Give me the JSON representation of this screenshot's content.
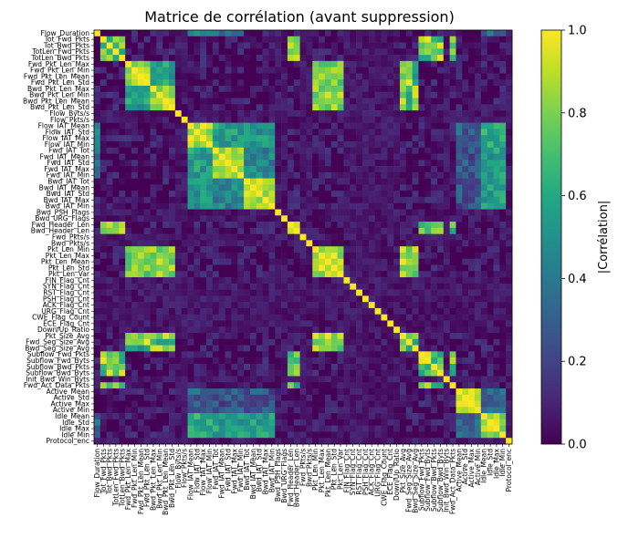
{
  "chart_data": {
    "type": "heatmap",
    "title": "Matrice de corrélation (avant suppression)",
    "colorbar_label": "|Corrélation|",
    "colormap": "viridis",
    "vmin": 0.0,
    "vmax": 1.0,
    "colorbar_ticks": [
      "0.0",
      "0.2",
      "0.4",
      "0.6",
      "0.8",
      "1.0"
    ],
    "colorbar_tick_values": [
      0.0,
      0.2,
      0.4,
      0.6,
      0.8,
      1.0
    ],
    "features": [
      "Flow_Duration",
      "Tot_Fwd_Pkts",
      "Tot_Bwd_Pkts",
      "TotLen_Fwd_Pkts",
      "TotLen_Bwd_Pkts",
      "Fwd_Pkt_Len_Max",
      "Fwd_Pkt_Len_Min",
      "Fwd_Pkt_Len_Mean",
      "Fwd_Pkt_Len_Std",
      "Bwd_Pkt_Len_Max",
      "Bwd_Pkt_Len_Min",
      "Bwd_Pkt_Len_Mean",
      "Bwd_Pkt_Len_Std",
      "Flow_Byts/s",
      "Flow_Pkts/s",
      "Flow_IAT_Mean",
      "Flow_IAT_Std",
      "Flow_IAT_Max",
      "Flow_IAT_Min",
      "Fwd_IAT_Tot",
      "Fwd_IAT_Mean",
      "Fwd_IAT_Std",
      "Fwd_IAT_Max",
      "Fwd_IAT_Min",
      "Bwd_IAT_Tot",
      "Bwd_IAT_Mean",
      "Bwd_IAT_Std",
      "Bwd_IAT_Max",
      "Bwd_IAT_Min",
      "Bwd_PSH_Flags",
      "Bwd_URG_Flags",
      "Fwd_Header_Len",
      "Bwd_Header_Len",
      "Fwd_Pkts/s",
      "Bwd_Pkts/s",
      "Pkt_Len_Min",
      "Pkt_Len_Max",
      "Pkt_Len_Mean",
      "Pkt_Len_Std",
      "Pkt_Len_Var",
      "FIN_Flag_Cnt",
      "SYN_Flag_Cnt",
      "RST_Flag_Cnt",
      "PSH_Flag_Cnt",
      "ACK_Flag_Cnt",
      "URG_Flag_Cnt",
      "CWE_Flag_Count",
      "ECE_Flag_Cnt",
      "Down/Up_Ratio",
      "Pkt_Size_Avg",
      "Fwd_Seg_Size_Avg",
      "Bwd_Seg_Size_Avg",
      "Subflow_Fwd_Pkts",
      "Subflow_Fwd_Byts",
      "Subflow_Bwd_Pkts",
      "Subflow_Bwd_Byts",
      "Init_Bwd_Win_Byts",
      "Fwd_Act_Data_Pkts",
      "Active_Mean",
      "Active_Std",
      "Active_Max",
      "Active_Min",
      "Idle_Mean",
      "Idle_Std",
      "Idle_Max",
      "Idle_Min",
      "Protocol_enc"
    ]
  }
}
